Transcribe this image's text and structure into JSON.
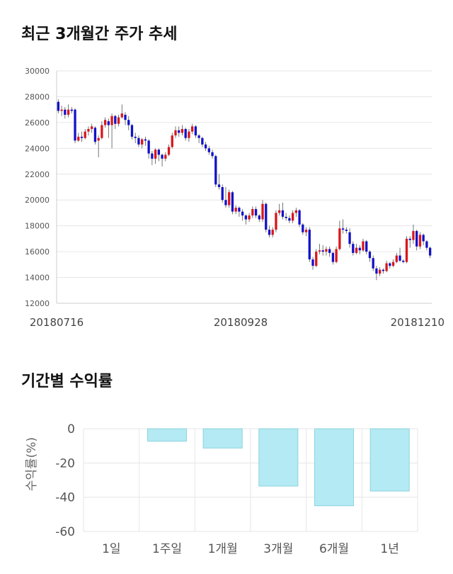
{
  "titles": {
    "stock_trend": "최근 3개월간 주가 추세",
    "returns": "기간별 수익률"
  },
  "colors": {
    "up": "#d8171b",
    "down": "#1212c8",
    "bar_fill": "#b3eaf3",
    "bar_stroke": "#8fd3df",
    "grid": "#e6e6e6"
  },
  "chart_data": [
    {
      "type": "candlestick",
      "title": "최근 3개월간 주가 추세",
      "ylim": [
        12000,
        30000
      ],
      "yticks": [
        12000,
        14000,
        16000,
        18000,
        20000,
        22000,
        24000,
        26000,
        28000,
        30000
      ],
      "x_labels": [
        "20180716",
        "20180928",
        "20181210"
      ],
      "grid": true,
      "series": [
        [
          27600,
          26900,
          27800,
          26700
        ],
        [
          26900,
          27000,
          27300,
          26500
        ],
        [
          27000,
          26600,
          27200,
          26300
        ],
        [
          26600,
          27000,
          27400,
          26400
        ],
        [
          27000,
          26900,
          27200,
          26700
        ],
        [
          27000,
          24600,
          27100,
          24400
        ],
        [
          24600,
          24900,
          25200,
          24500
        ],
        [
          24900,
          24800,
          25300,
          24500
        ],
        [
          24800,
          25300,
          25500,
          24700
        ],
        [
          25300,
          25500,
          25700,
          25000
        ],
        [
          25500,
          25700,
          25900,
          25200
        ],
        [
          25600,
          24500,
          25700,
          24300
        ],
        [
          24600,
          24800,
          25000,
          23300
        ],
        [
          24800,
          25800,
          26100,
          24700
        ],
        [
          25800,
          26200,
          26400,
          25600
        ],
        [
          26100,
          25800,
          26300,
          24800
        ],
        [
          25800,
          26500,
          26700,
          24000
        ],
        [
          26500,
          25900,
          26600,
          25500
        ],
        [
          25900,
          26400,
          26600,
          25700
        ],
        [
          26400,
          26700,
          27400,
          26300
        ],
        [
          26600,
          26200,
          26800,
          25800
        ],
        [
          26200,
          25800,
          26500,
          25400
        ],
        [
          25800,
          24900,
          25900,
          24700
        ],
        [
          24900,
          24800,
          25200,
          24400
        ],
        [
          24800,
          24300,
          25000,
          24100
        ],
        [
          24300,
          24700,
          24800,
          24000
        ],
        [
          24700,
          24600,
          24900,
          24200
        ],
        [
          24600,
          23600,
          24700,
          23200
        ],
        [
          23600,
          23200,
          23800,
          22700
        ],
        [
          23200,
          23900,
          24000,
          22800
        ],
        [
          23900,
          23500,
          24000,
          23000
        ],
        [
          23500,
          23200,
          23600,
          22600
        ],
        [
          23200,
          23500,
          23700,
          23000
        ],
        [
          23500,
          24100,
          24300,
          23400
        ],
        [
          24100,
          25000,
          25200,
          24000
        ],
        [
          25000,
          25400,
          25700,
          24800
        ],
        [
          25400,
          25200,
          25700,
          24900
        ],
        [
          25200,
          25500,
          25800,
          25000
        ],
        [
          25500,
          24800,
          25600,
          24600
        ],
        [
          24800,
          25300,
          25500,
          24500
        ],
        [
          25300,
          25700,
          25900,
          25100
        ],
        [
          25700,
          25000,
          25800,
          24800
        ],
        [
          25000,
          24800,
          25100,
          24400
        ],
        [
          24800,
          24300,
          24900,
          24100
        ],
        [
          24300,
          24000,
          24500,
          23800
        ],
        [
          24000,
          23700,
          24200,
          23500
        ],
        [
          23700,
          23400,
          23900,
          23200
        ],
        [
          23400,
          21200,
          23500,
          21000
        ],
        [
          21200,
          21000,
          22000,
          20800
        ],
        [
          21000,
          20000,
          21200,
          19800
        ],
        [
          20000,
          19600,
          21000,
          19400
        ],
        [
          19600,
          20600,
          20800,
          19400
        ],
        [
          20600,
          19100,
          20700,
          18900
        ],
        [
          19100,
          19400,
          19600,
          18900
        ],
        [
          19400,
          19100,
          19500,
          18700
        ],
        [
          19100,
          18800,
          19300,
          18400
        ],
        [
          18800,
          18500,
          18900,
          18100
        ],
        [
          18500,
          18800,
          19000,
          18300
        ],
        [
          18800,
          19300,
          19500,
          18600
        ],
        [
          19300,
          18800,
          19500,
          18600
        ],
        [
          18800,
          18500,
          18900,
          18300
        ],
        [
          18500,
          19700,
          20000,
          18300
        ],
        [
          19700,
          17700,
          19800,
          17500
        ],
        [
          17700,
          17300,
          18000,
          17100
        ],
        [
          17300,
          17700,
          17900,
          17100
        ],
        [
          17700,
          19000,
          19200,
          17500
        ],
        [
          19000,
          19200,
          19700,
          18800
        ],
        [
          19200,
          18700,
          19800,
          18500
        ],
        [
          18700,
          18600,
          19000,
          18400
        ],
        [
          18600,
          18400,
          18800,
          18200
        ],
        [
          18400,
          19000,
          19200,
          18200
        ],
        [
          19000,
          19200,
          19400,
          18700
        ],
        [
          19200,
          18100,
          19300,
          17900
        ],
        [
          18100,
          17500,
          18200,
          17300
        ],
        [
          17500,
          17700,
          17900,
          17200
        ],
        [
          17700,
          15400,
          17900,
          15200
        ],
        [
          15400,
          14900,
          15600,
          14600
        ],
        [
          14900,
          16000,
          16200,
          14800
        ],
        [
          16000,
          16100,
          16600,
          15800
        ],
        [
          16100,
          16000,
          16500,
          15700
        ],
        [
          16000,
          16200,
          16400,
          15700
        ],
        [
          16200,
          15900,
          16400,
          15600
        ],
        [
          15900,
          15200,
          16000,
          15000
        ],
        [
          15200,
          16200,
          16400,
          15100
        ],
        [
          16200,
          17800,
          18400,
          16100
        ],
        [
          17800,
          17700,
          18500,
          17400
        ],
        [
          17700,
          17600,
          17900,
          17400
        ],
        [
          17500,
          16600,
          17800,
          16300
        ],
        [
          16600,
          15900,
          16800,
          15700
        ],
        [
          15900,
          16300,
          16600,
          15800
        ],
        [
          16300,
          16100,
          16500,
          15800
        ],
        [
          16100,
          16800,
          17000,
          16000
        ],
        [
          16800,
          16000,
          16900,
          15800
        ],
        [
          16000,
          15500,
          16100,
          15200
        ],
        [
          15500,
          14700,
          15700,
          14500
        ],
        [
          14700,
          14300,
          14900,
          13800
        ],
        [
          14300,
          14600,
          14800,
          14100
        ],
        [
          14600,
          14500,
          14700,
          14300
        ],
        [
          14500,
          15100,
          15300,
          14400
        ],
        [
          15100,
          14900,
          15200,
          14700
        ],
        [
          14900,
          15200,
          15400,
          14800
        ],
        [
          15200,
          15700,
          15900,
          15100
        ],
        [
          15700,
          15300,
          16300,
          15200
        ],
        [
          15300,
          15200,
          15400,
          15100
        ],
        [
          15200,
          17000,
          17200,
          15100
        ],
        [
          17000,
          16900,
          17200,
          16300
        ],
        [
          16900,
          17600,
          18100,
          16600
        ],
        [
          17600,
          16400,
          17700,
          16100
        ],
        [
          16400,
          17300,
          17500,
          16200
        ],
        [
          17300,
          16800,
          17400,
          16500
        ],
        [
          16800,
          16300,
          16900,
          16100
        ],
        [
          16300,
          15700,
          16400,
          15500
        ]
      ]
    },
    {
      "type": "bar",
      "title": "기간별 수익률",
      "ylabel": "수익률(%)",
      "categories": [
        "1일",
        "1주일",
        "1개월",
        "3개월",
        "6개월",
        "1년"
      ],
      "values": [
        0,
        -7.3,
        -11.3,
        -33.5,
        -45.0,
        -36.4
      ],
      "ylim": [
        -60,
        0
      ],
      "yticks": [
        0,
        -20,
        -40,
        -60
      ],
      "grid": true
    }
  ]
}
